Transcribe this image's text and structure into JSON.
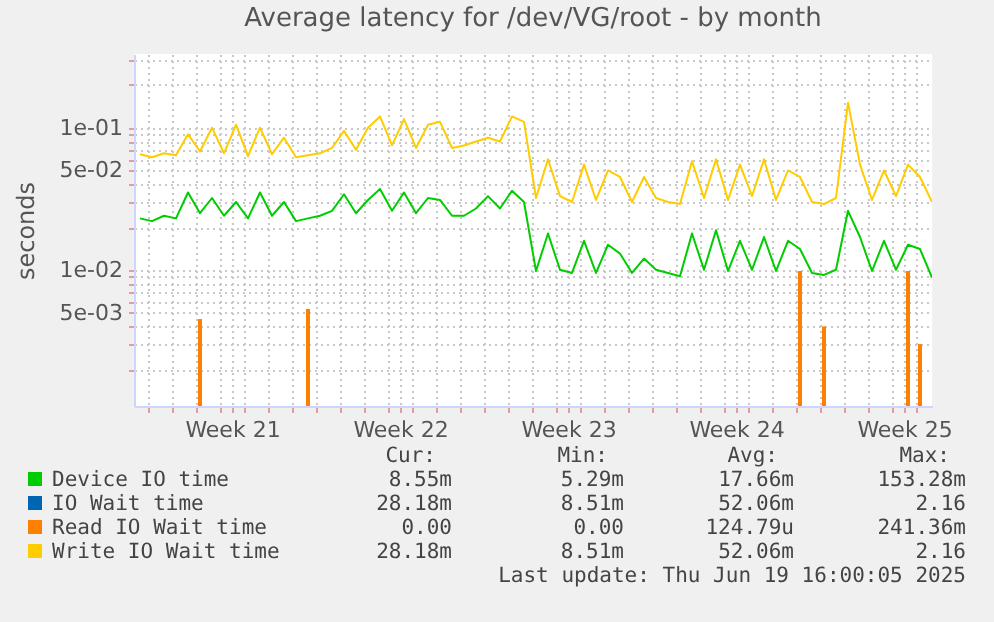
{
  "chart_data": {
    "type": "line",
    "title": "Average latency for /dev/VG/root - by month",
    "ylabel": "seconds",
    "log": "y",
    "grid": true,
    "legend": "bottom",
    "ylim": [
      0.0011,
      0.33
    ],
    "yticks": [
      {
        "value": 0.002,
        "label": null
      },
      {
        "value": 0.003,
        "label": null
      },
      {
        "value": 0.004,
        "label": null
      },
      {
        "value": 0.005,
        "label": "5e-03"
      },
      {
        "value": 0.006,
        "label": null
      },
      {
        "value": 0.007,
        "label": null
      },
      {
        "value": 0.008,
        "label": null
      },
      {
        "value": 0.009,
        "label": null
      },
      {
        "value": 0.01,
        "label": "1e-02"
      },
      {
        "value": 0.02,
        "label": null
      },
      {
        "value": 0.03,
        "label": null
      },
      {
        "value": 0.04,
        "label": null
      },
      {
        "value": 0.05,
        "label": "5e-02"
      },
      {
        "value": 0.06,
        "label": null
      },
      {
        "value": 0.07,
        "label": null
      },
      {
        "value": 0.08,
        "label": null
      },
      {
        "value": 0.09,
        "label": null
      },
      {
        "value": 0.1,
        "label": "1e-01"
      },
      {
        "value": 0.2,
        "label": null
      },
      {
        "value": 0.3,
        "label": null
      }
    ],
    "xlim": [
      "--05-17T10:00",
      "--06-19T16:00"
    ],
    "xticks": [
      {
        "value": "--05-18",
        "label": null
      },
      {
        "value": "--05-19",
        "label": null
      },
      {
        "value": "--05-20",
        "label": null
      },
      {
        "value": "--05-21",
        "label": null
      },
      {
        "value": "--05-21T12:00",
        "label": "Week 21"
      },
      {
        "value": "--05-22",
        "label": null
      },
      {
        "value": "--05-23",
        "label": null
      },
      {
        "value": "--05-24",
        "label": null
      },
      {
        "value": "--05-25",
        "label": null
      },
      {
        "value": "--05-26",
        "label": null
      },
      {
        "value": "--05-27",
        "label": null
      },
      {
        "value": "--05-28",
        "label": null
      },
      {
        "value": "--05-28T12:00",
        "label": "Week 22"
      },
      {
        "value": "--05-29",
        "label": null
      },
      {
        "value": "--05-30",
        "label": null
      },
      {
        "value": "--05-31",
        "label": null
      },
      {
        "value": "--06-01",
        "label": null
      },
      {
        "value": "--06-02",
        "label": null
      },
      {
        "value": "--06-03",
        "label": null
      },
      {
        "value": "--06-04",
        "label": null
      },
      {
        "value": "--06-04T12:00",
        "label": "Week 23"
      },
      {
        "value": "--06-05",
        "label": null
      },
      {
        "value": "--06-06",
        "label": null
      },
      {
        "value": "--06-07",
        "label": null
      },
      {
        "value": "--06-08",
        "label": null
      },
      {
        "value": "--06-09",
        "label": null
      },
      {
        "value": "--06-10",
        "label": null
      },
      {
        "value": "--06-11",
        "label": null
      },
      {
        "value": "--06-11T12:00",
        "label": "Week 24"
      },
      {
        "value": "--06-12",
        "label": null
      },
      {
        "value": "--06-13",
        "label": null
      },
      {
        "value": "--06-14",
        "label": null
      },
      {
        "value": "--06-15",
        "label": null
      },
      {
        "value": "--06-16",
        "label": null
      },
      {
        "value": "--06-17",
        "label": null
      },
      {
        "value": "--06-18",
        "label": null
      },
      {
        "value": "--06-18T12:00",
        "label": "Week 25"
      },
      {
        "value": "--06-19",
        "label": null
      }
    ],
    "x": [
      "--05-17T16:00",
      "--05-18T04:00",
      "--05-18T16:00",
      "--05-19T04:00",
      "--05-19T16:00",
      "--05-20T04:00",
      "--05-20T16:00",
      "--05-21T04:00",
      "--05-21T16:00",
      "--05-22T04:00",
      "--05-22T16:00",
      "--05-23T04:00",
      "--05-23T16:00",
      "--05-24T04:00",
      "--05-24T16:00",
      "--05-25T04:00",
      "--05-25T16:00",
      "--05-26T04:00",
      "--05-26T16:00",
      "--05-27T04:00",
      "--05-27T16:00",
      "--05-28T04:00",
      "--05-28T16:00",
      "--05-29T04:00",
      "--05-29T16:00",
      "--05-30T04:00",
      "--05-30T16:00",
      "--05-31T04:00",
      "--05-31T16:00",
      "--06-01T04:00",
      "--06-01T16:00",
      "--06-02T04:00",
      "--06-02T16:00",
      "--06-03T04:00",
      "--06-03T16:00",
      "--06-04T04:00",
      "--06-04T16:00",
      "--06-05T04:00",
      "--06-05T16:00",
      "--06-06T04:00",
      "--06-06T16:00",
      "--06-07T04:00",
      "--06-07T16:00",
      "--06-08T04:00",
      "--06-08T16:00",
      "--06-09T04:00",
      "--06-09T16:00",
      "--06-10T04:00",
      "--06-10T16:00",
      "--06-11T04:00",
      "--06-11T16:00",
      "--06-12T04:00",
      "--06-12T16:00",
      "--06-13T04:00",
      "--06-13T16:00",
      "--06-14T04:00",
      "--06-14T16:00",
      "--06-15T04:00",
      "--06-15T16:00",
      "--06-16T04:00",
      "--06-16T16:00",
      "--06-17T04:00",
      "--06-17T16:00",
      "--06-18T04:00",
      "--06-18T16:00",
      "--06-19T04:00",
      "--06-19T16:00"
    ],
    "series": [
      {
        "name": "Device IO time",
        "color": "#00cc00",
        "values": [
          0.023,
          0.022,
          0.024,
          0.023,
          0.035,
          0.025,
          0.032,
          0.024,
          0.03,
          0.023,
          0.035,
          0.024,
          0.03,
          0.022,
          0.023,
          0.024,
          0.026,
          0.034,
          0.025,
          0.031,
          0.037,
          0.026,
          0.035,
          0.025,
          0.032,
          0.031,
          0.024,
          0.024,
          0.027,
          0.033,
          0.027,
          0.036,
          0.03,
          0.0098,
          0.018,
          0.01,
          0.0095,
          0.016,
          0.0095,
          0.015,
          0.013,
          0.0095,
          0.012,
          0.01,
          0.0095,
          0.009,
          0.018,
          0.01,
          0.019,
          0.0098,
          0.016,
          0.01,
          0.017,
          0.0098,
          0.016,
          0.014,
          0.0095,
          0.0092,
          0.01,
          0.026,
          0.017,
          0.0098,
          0.016,
          0.01,
          0.015,
          0.014,
          0.0088
        ]
      },
      {
        "name": "IO Wait time",
        "color": "#0066b3",
        "values": [
          null,
          null,
          null,
          null,
          null,
          null,
          null,
          null,
          null,
          null,
          null,
          null,
          null,
          null,
          null,
          null,
          null,
          null,
          null,
          null,
          null,
          null,
          null,
          null,
          null,
          null,
          null,
          null,
          null,
          null,
          null,
          null,
          null,
          null,
          null,
          null,
          null,
          null,
          null,
          null,
          null,
          null,
          null,
          null,
          null,
          null,
          null,
          null,
          null,
          null,
          null,
          null,
          null,
          null,
          null,
          null,
          null,
          null,
          null,
          null,
          null,
          null,
          null,
          null,
          null,
          null,
          null
        ]
      },
      {
        "name": "Read IO Wait time",
        "color": "#ff8000",
        "type": "bar",
        "values": [
          null,
          null,
          null,
          null,
          null,
          0.0045,
          null,
          null,
          null,
          null,
          null,
          null,
          null,
          null,
          0.0053,
          null,
          null,
          null,
          null,
          null,
          null,
          null,
          null,
          null,
          null,
          null,
          null,
          null,
          null,
          null,
          null,
          null,
          null,
          null,
          null,
          null,
          null,
          null,
          null,
          null,
          null,
          null,
          null,
          null,
          null,
          null,
          null,
          null,
          null,
          null,
          null,
          null,
          null,
          null,
          null,
          0.0098,
          null,
          0.004,
          null,
          null,
          null,
          null,
          null,
          null,
          0.0098,
          0.003,
          null
        ]
      },
      {
        "name": "Write IO Wait time",
        "color": "#ffcc00",
        "values": [
          0.065,
          0.062,
          0.066,
          0.064,
          0.09,
          0.068,
          0.1,
          0.066,
          0.105,
          0.063,
          0.1,
          0.065,
          0.085,
          0.062,
          0.064,
          0.066,
          0.072,
          0.095,
          0.07,
          0.1,
          0.12,
          0.075,
          0.115,
          0.072,
          0.105,
          0.11,
          0.072,
          0.075,
          0.08,
          0.085,
          0.08,
          0.12,
          0.11,
          0.032,
          0.06,
          0.033,
          0.03,
          0.055,
          0.031,
          0.05,
          0.045,
          0.03,
          0.045,
          0.032,
          0.03,
          0.029,
          0.058,
          0.032,
          0.06,
          0.031,
          0.055,
          0.033,
          0.06,
          0.031,
          0.05,
          0.045,
          0.03,
          0.029,
          0.032,
          0.15,
          0.055,
          0.031,
          0.05,
          0.033,
          0.055,
          0.045,
          0.03
        ]
      }
    ],
    "annotations": [
      "Cur:",
      "Min:",
      "Avg:",
      "Max:",
      "8.55m",
      "5.29m",
      "17.66m",
      "153.28m",
      "28.18m",
      "8.51m",
      "52.06m",
      "2.16",
      "0.00",
      "0.00",
      "124.79u",
      "241.36m",
      "28.18m",
      "8.51m",
      "52.06m",
      "2.16",
      "Last update: Thu Jun 19 16:00:05 2025"
    ]
  }
}
